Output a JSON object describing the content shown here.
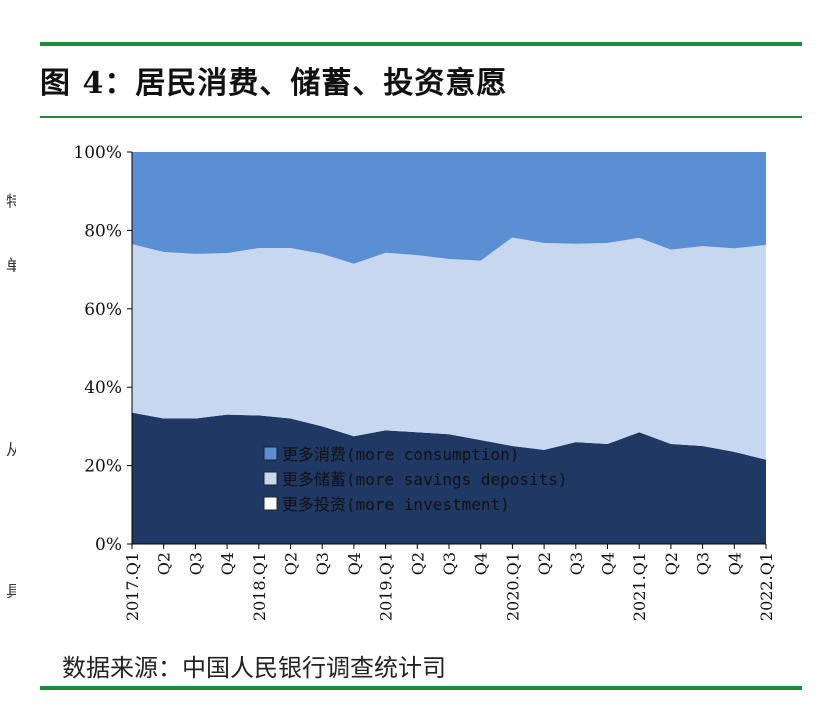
{
  "figure": {
    "title": "图 4：居民消费、储蓄、投资意愿",
    "source": "数据来源：中国人民银行调查统计司"
  },
  "chart_data": {
    "type": "area",
    "stacked": true,
    "categories": [
      "2017.Q1",
      "Q2",
      "Q3",
      "Q4",
      "2018.Q1",
      "Q2",
      "Q3",
      "Q4",
      "2019.Q1",
      "Q2",
      "Q3",
      "Q4",
      "2020.Q1",
      "Q2",
      "Q3",
      "Q4",
      "2021.Q1",
      "Q2",
      "Q3",
      "Q4",
      "2022.Q1"
    ],
    "y_tick_labels": [
      "0%",
      "20%",
      "40%",
      "60%",
      "80%",
      "100%"
    ],
    "ylim": [
      0,
      100
    ],
    "series": [
      {
        "name": "更多投资(more investment)",
        "color": "#1f3864",
        "values": [
          33.5,
          32.0,
          32.0,
          33.0,
          32.8,
          32.0,
          30.0,
          27.5,
          29.0,
          28.5,
          28.0,
          26.5,
          25.0,
          24.0,
          26.0,
          25.5,
          28.5,
          25.5,
          25.0,
          23.5,
          21.5
        ]
      },
      {
        "name": "更多储蓄(more savings deposits)",
        "color": "#c6d7ef",
        "values": [
          43.0,
          42.5,
          42.0,
          41.2,
          42.7,
          43.5,
          44.0,
          44.0,
          45.3,
          45.2,
          44.7,
          45.8,
          53.2,
          52.8,
          50.6,
          51.3,
          49.6,
          49.6,
          51.0,
          51.9,
          54.8
        ]
      },
      {
        "name": "更多消费(more consumption)",
        "color": "#5b8fd4",
        "values": [
          23.5,
          25.5,
          26.0,
          25.8,
          24.5,
          24.5,
          26.0,
          28.5,
          25.7,
          26.3,
          27.3,
          27.7,
          21.8,
          23.2,
          23.4,
          23.2,
          21.9,
          24.9,
          24.0,
          24.6,
          23.7
        ]
      }
    ],
    "legend": {
      "position": "bottom-center",
      "entries": [
        {
          "label": "更多消费(more consumption)",
          "color": "#5b8fd4"
        },
        {
          "label": "更多储蓄(more savings deposits)",
          "color": "#c6d7ef"
        },
        {
          "label": "更多投资(more investment)",
          "color": "#ffffff"
        }
      ]
    }
  },
  "margin_text": [
    "特",
    "单",
    "从",
    "具"
  ]
}
